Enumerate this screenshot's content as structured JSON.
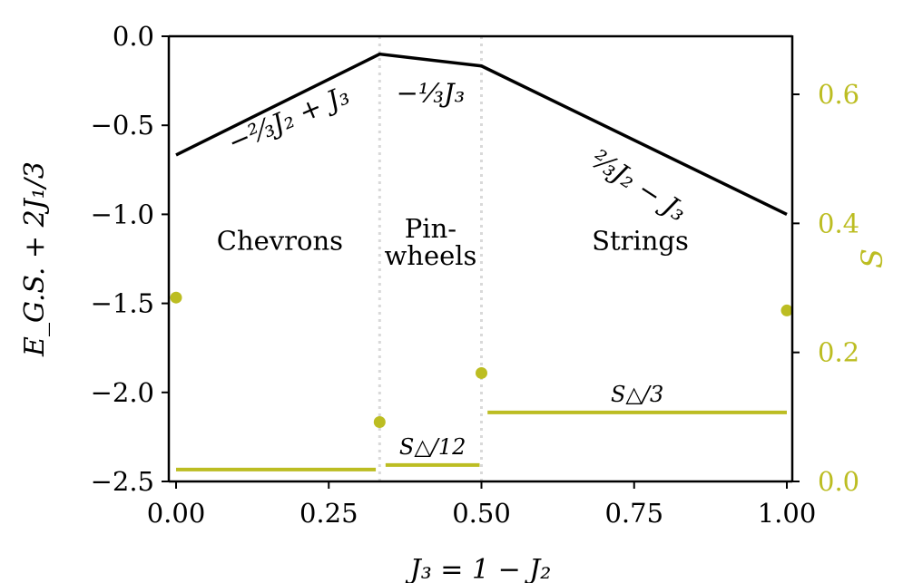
{
  "chart_data": {
    "type": "line",
    "xlabel": "J₃ = 1 − J₂",
    "ylabel_left": "E_G.S. + 2J₁/3",
    "ylabel_right": "S",
    "xlim": [
      0,
      1
    ],
    "ylim_left": [
      -2.5,
      0
    ],
    "ylim_right": [
      0,
      0.69
    ],
    "xticks": [
      0,
      0.25,
      0.5,
      0.75,
      1
    ],
    "xtick_labels": [
      "0.00",
      "0.25",
      "0.50",
      "0.75",
      "1.00"
    ],
    "yticks_left": [
      0,
      -0.5,
      -1,
      -1.5,
      -2,
      -2.5
    ],
    "ytick_labels_left": [
      "0.0",
      "−0.5",
      "−1.0",
      "−1.5",
      "−2.0",
      "−2.5"
    ],
    "yticks_right": [
      0,
      0.2,
      0.4,
      0.6
    ],
    "ytick_labels_right": [
      "0.0",
      "0.2",
      "0.4",
      "0.6"
    ],
    "colors": {
      "energy": "#000000",
      "entropy": "#bcbd22",
      "boundary": "#d9d9d9"
    },
    "phase_boundaries": [
      0.3333,
      0.5
    ],
    "energy_line": {
      "x": [
        0,
        0.3333,
        0.5,
        1
      ],
      "y": [
        -0.6667,
        -0.1,
        -0.1667,
        -1.0
      ]
    },
    "entropy_points": {
      "x": [
        0,
        0.3333,
        0.5,
        1
      ],
      "y": [
        0.285,
        0.092,
        0.168,
        0.265
      ]
    },
    "entropy_levels": [
      {
        "x": [
          0,
          0.327
        ],
        "y": 0.0185,
        "label": ""
      },
      {
        "x": [
          0.343,
          0.497
        ],
        "y": 0.0255,
        "label": "S△/12"
      },
      {
        "x": [
          0.51,
          1
        ],
        "y": 0.107,
        "label": "S△/3"
      }
    ],
    "phase_labels": [
      {
        "lines": [
          "Chevrons"
        ],
        "x": 0.17,
        "y": -1.2
      },
      {
        "lines": [
          "Pin-",
          "wheels"
        ],
        "x": 0.4167,
        "y": -1.13
      },
      {
        "lines": [
          "Strings"
        ],
        "x": 0.76,
        "y": -1.2
      }
    ],
    "energy_annotations": [
      {
        "text": "−⅔J₂ + J₃",
        "x": 0.19,
        "y": -0.51,
        "angle": -23
      },
      {
        "text": "−⅓J₃",
        "x": 0.4167,
        "y": -0.37,
        "angle": 0
      },
      {
        "text": "⅔J₂ − J₃",
        "x": 0.75,
        "y": -0.88,
        "angle": 33
      }
    ]
  }
}
